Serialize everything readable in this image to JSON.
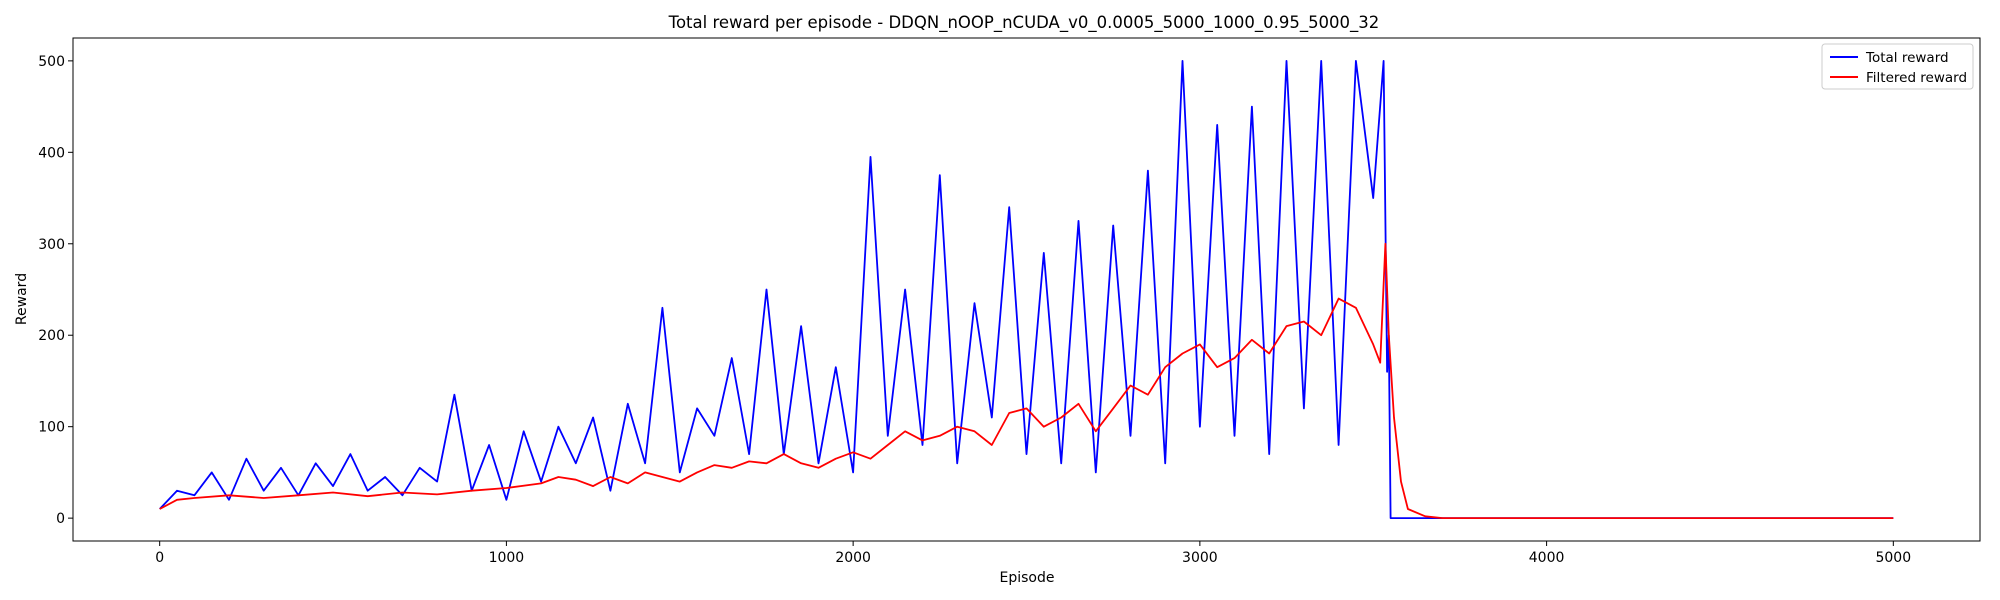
{
  "chart_data": {
    "type": "line",
    "title": "Total reward per episode - DDQN_nOOP_nCUDA_v0_0.0005_5000_1000_0.95_5000_32",
    "xlabel": "Episode",
    "ylabel": "Reward",
    "xlim": [
      -250,
      5250
    ],
    "ylim": [
      -25,
      525
    ],
    "xticks": [
      0,
      1000,
      2000,
      3000,
      4000,
      5000
    ],
    "yticks": [
      0,
      100,
      200,
      300,
      400,
      500
    ],
    "grid": false,
    "legend": {
      "placement": "top-right"
    },
    "series": [
      {
        "name": "Total reward",
        "color": "#0000ff",
        "x": [
          0,
          50,
          100,
          150,
          200,
          250,
          300,
          350,
          400,
          450,
          500,
          550,
          600,
          650,
          700,
          750,
          800,
          850,
          900,
          950,
          1000,
          1050,
          1100,
          1150,
          1200,
          1250,
          1300,
          1350,
          1400,
          1450,
          1500,
          1550,
          1600,
          1650,
          1700,
          1750,
          1800,
          1850,
          1900,
          1950,
          2000,
          2050,
          2100,
          2150,
          2200,
          2250,
          2300,
          2350,
          2400,
          2450,
          2500,
          2550,
          2600,
          2650,
          2700,
          2750,
          2800,
          2850,
          2900,
          2950,
          3000,
          3050,
          3100,
          3150,
          3200,
          3250,
          3300,
          3350,
          3400,
          3450,
          3500,
          3530,
          3540,
          3545,
          3550,
          3600,
          4000,
          5000
        ],
        "values": [
          10,
          30,
          25,
          50,
          20,
          65,
          30,
          55,
          25,
          60,
          35,
          70,
          30,
          45,
          25,
          55,
          40,
          135,
          30,
          80,
          20,
          95,
          40,
          100,
          60,
          110,
          30,
          125,
          60,
          230,
          50,
          120,
          90,
          175,
          70,
          250,
          70,
          210,
          60,
          165,
          50,
          395,
          90,
          250,
          80,
          375,
          60,
          235,
          110,
          340,
          70,
          290,
          60,
          325,
          50,
          320,
          90,
          380,
          60,
          500,
          100,
          430,
          90,
          450,
          70,
          500,
          120,
          500,
          80,
          500,
          350,
          500,
          160,
          200,
          0,
          0,
          0,
          0
        ]
      },
      {
        "name": "Filtered reward",
        "color": "#ff0000",
        "x": [
          0,
          50,
          100,
          200,
          300,
          400,
          500,
          600,
          700,
          800,
          900,
          1000,
          1100,
          1150,
          1200,
          1250,
          1300,
          1350,
          1400,
          1450,
          1500,
          1550,
          1600,
          1650,
          1700,
          1750,
          1800,
          1850,
          1900,
          1950,
          2000,
          2050,
          2100,
          2150,
          2200,
          2250,
          2300,
          2350,
          2400,
          2450,
          2500,
          2550,
          2600,
          2650,
          2700,
          2750,
          2800,
          2850,
          2900,
          2950,
          3000,
          3050,
          3100,
          3150,
          3200,
          3250,
          3300,
          3350,
          3400,
          3450,
          3500,
          3520,
          3535,
          3545,
          3560,
          3580,
          3600,
          3650,
          3700,
          4000,
          5000
        ],
        "values": [
          10,
          20,
          22,
          25,
          22,
          25,
          28,
          24,
          28,
          26,
          30,
          33,
          38,
          45,
          42,
          35,
          45,
          38,
          50,
          45,
          40,
          50,
          58,
          55,
          62,
          60,
          70,
          60,
          55,
          65,
          72,
          65,
          80,
          95,
          85,
          90,
          100,
          95,
          80,
          115,
          120,
          100,
          110,
          125,
          95,
          120,
          145,
          135,
          165,
          180,
          190,
          165,
          175,
          195,
          180,
          210,
          215,
          200,
          240,
          230,
          190,
          170,
          300,
          200,
          110,
          40,
          10,
          2,
          0,
          0,
          0
        ]
      }
    ]
  }
}
